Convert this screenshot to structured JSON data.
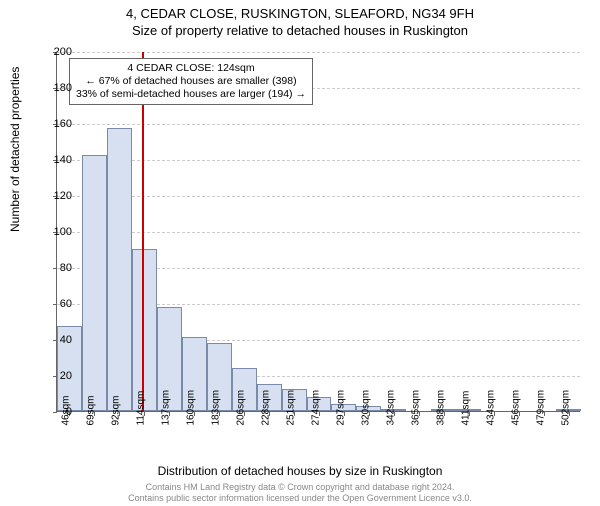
{
  "title": "4, CEDAR CLOSE, RUSKINGTON, SLEAFORD, NG34 9FH",
  "subtitle": "Size of property relative to detached houses in Ruskington",
  "chart": {
    "type": "histogram",
    "y_label": "Number of detached properties",
    "x_label": "Distribution of detached houses by size in Ruskington",
    "y_max": 200,
    "y_tick_step": 20,
    "y_ticks": [
      0,
      20,
      40,
      60,
      80,
      100,
      120,
      140,
      160,
      180,
      200
    ],
    "x_categories": [
      "46sqm",
      "69sqm",
      "92sqm",
      "114sqm",
      "137sqm",
      "160sqm",
      "183sqm",
      "206sqm",
      "228sqm",
      "251sqm",
      "274sqm",
      "297sqm",
      "320sqm",
      "342sqm",
      "365sqm",
      "388sqm",
      "411sqm",
      "434sqm",
      "456sqm",
      "479sqm",
      "502sqm"
    ],
    "values": [
      47,
      142,
      157,
      90,
      58,
      41,
      38,
      24,
      15,
      12,
      8,
      4,
      3,
      1,
      0,
      1,
      1,
      0,
      0,
      0,
      1
    ],
    "bar_fill": "#d6e0f0",
    "bar_stroke": "#7a8aa8",
    "grid_color": "#cccccc",
    "background": "#ffffff",
    "reference_line": {
      "position_index": 3.4,
      "color": "#cc0000"
    },
    "annotation": {
      "line1": "4 CEDAR CLOSE: 124sqm",
      "line2": "← 67% of detached houses are smaller (398)",
      "line3": "33% of semi-detached houses are larger (194) →"
    }
  },
  "footer": {
    "line1": "Contains HM Land Registry data © Crown copyright and database right 2024.",
    "line2": "Contains public sector information licensed under the Open Government Licence v3.0."
  }
}
